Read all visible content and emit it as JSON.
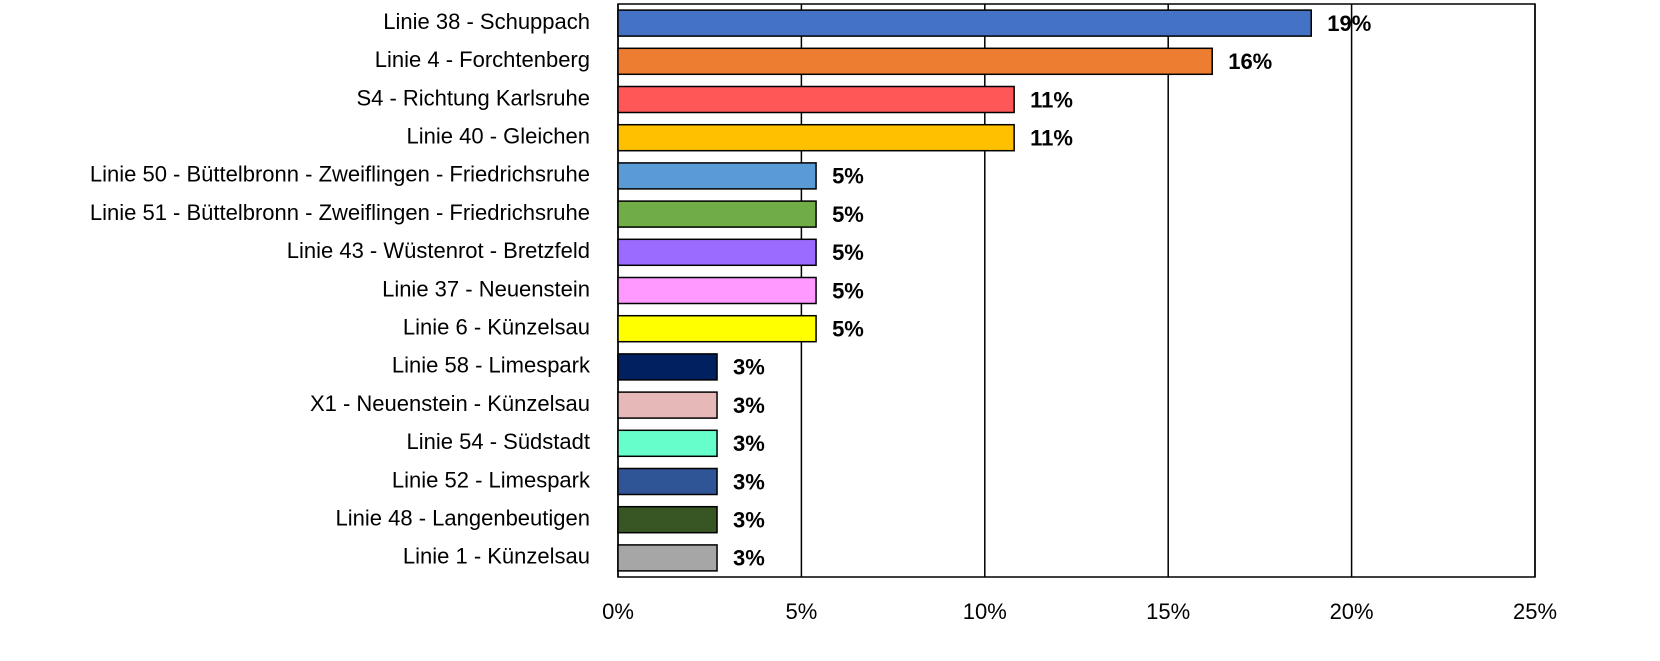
{
  "chart_data": {
    "type": "bar",
    "orientation": "horizontal",
    "categories": [
      "Linie 38 - Schuppach",
      "Linie 4 - Forchtenberg",
      "S4 - Richtung Karlsruhe",
      "Linie 40 - Gleichen",
      "Linie 50 - Büttelbronn - Zweiflingen - Friedrichsruhe",
      "Linie 51 - Büttelbronn - Zweiflingen - Friedrichsruhe",
      "Linie 43 - Wüstenrot - Bretzfeld",
      "Linie 37 - Neuenstein",
      "Linie 6 - Künzelsau",
      "Linie 58 - Limespark",
      "X1 - Neuenstein - Künzelsau",
      "Linie 54 - Südstadt",
      "Linie 52 - Limespark",
      "Linie 48 - Langenbeutigen",
      "Linie 1 - Künzelsau"
    ],
    "values": [
      18.9,
      16.2,
      10.8,
      10.8,
      5.4,
      5.4,
      5.4,
      5.4,
      5.4,
      2.7,
      2.7,
      2.7,
      2.7,
      2.7,
      2.7
    ],
    "value_labels": [
      "19%",
      "16%",
      "11%",
      "11%",
      "5%",
      "5%",
      "5%",
      "5%",
      "5%",
      "3%",
      "3%",
      "3%",
      "3%",
      "3%",
      "3%"
    ],
    "colors": [
      "#4472c4",
      "#ed7d31",
      "#ff5757",
      "#ffc000",
      "#5b9bd5",
      "#70ad47",
      "#9b6bff",
      "#ff99ff",
      "#ffff00",
      "#002060",
      "#e6b9b8",
      "#66ffcc",
      "#2f5597",
      "#375623",
      "#a6a6a6"
    ],
    "xlim": [
      0,
      25
    ],
    "xticks": [
      {
        "value": 0,
        "label": "0%"
      },
      {
        "value": 5,
        "label": "5%"
      },
      {
        "value": 10,
        "label": "10%"
      },
      {
        "value": 15,
        "label": "15%"
      },
      {
        "value": 20,
        "label": "20%"
      },
      {
        "value": 25,
        "label": "25%"
      }
    ],
    "grid": true
  }
}
